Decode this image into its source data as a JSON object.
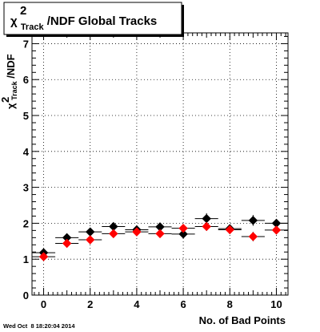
{
  "timestamp": "Wed Oct  8 18:20:04 2014",
  "title_box": {
    "chi": "χ",
    "superscript": "2",
    "subscript": "Track",
    "rest": "/NDF  Global Tracks"
  },
  "chart_data": {
    "type": "scatter",
    "xlabel": "No. of Bad Points",
    "ylabel": {
      "chi": "χ",
      "superscript": "2",
      "subscript": "Track",
      "rest": "/NDF"
    },
    "xlim": [
      -0.5,
      10.5
    ],
    "ylim": [
      0,
      7.3
    ],
    "x_ticks": [
      0,
      2,
      4,
      6,
      8,
      10
    ],
    "y_ticks": [
      0,
      1,
      2,
      3,
      4,
      5,
      6,
      7
    ],
    "grid": true,
    "legend": "none",
    "series": [
      {
        "color": "#000000",
        "marker": "diamond",
        "points": [
          {
            "x": 0,
            "y": 1.18,
            "yerr": 0.06
          },
          {
            "x": 1,
            "y": 1.6,
            "yerr": 0.06
          },
          {
            "x": 2,
            "y": 1.76,
            "yerr": 0.07
          },
          {
            "x": 3,
            "y": 1.91,
            "yerr": 0.07
          },
          {
            "x": 4,
            "y": 1.82,
            "yerr": 0.07
          },
          {
            "x": 5,
            "y": 1.9,
            "yerr": 0.07
          },
          {
            "x": 6,
            "y": 1.7,
            "yerr": 0.08
          },
          {
            "x": 7,
            "y": 2.13,
            "yerr": 0.15
          },
          {
            "x": 8,
            "y": 1.85,
            "yerr": 0.12
          },
          {
            "x": 9,
            "y": 2.08,
            "yerr": 0.15
          },
          {
            "x": 10,
            "y": 2.0,
            "yerr": 0.12
          }
        ]
      },
      {
        "color": "#ff0000",
        "marker": "diamond",
        "points": [
          {
            "x": 0,
            "y": 1.07,
            "yerr": 0.05
          },
          {
            "x": 1,
            "y": 1.44,
            "yerr": 0.05
          },
          {
            "x": 2,
            "y": 1.54,
            "yerr": 0.06
          },
          {
            "x": 3,
            "y": 1.71,
            "yerr": 0.06
          },
          {
            "x": 4,
            "y": 1.76,
            "yerr": 0.06
          },
          {
            "x": 5,
            "y": 1.71,
            "yerr": 0.07
          },
          {
            "x": 6,
            "y": 1.86,
            "yerr": 0.08
          },
          {
            "x": 7,
            "y": 1.91,
            "yerr": 0.12
          },
          {
            "x": 8,
            "y": 1.82,
            "yerr": 0.12
          },
          {
            "x": 9,
            "y": 1.63,
            "yerr": 0.13
          },
          {
            "x": 10,
            "y": 1.81,
            "yerr": 0.12
          }
        ]
      }
    ]
  }
}
